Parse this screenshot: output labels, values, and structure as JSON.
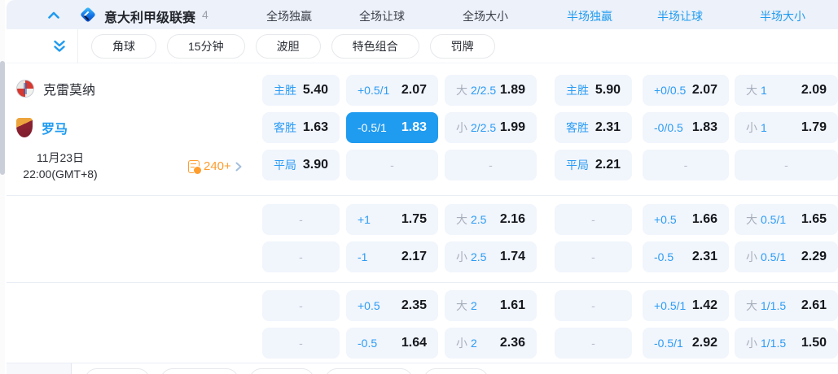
{
  "header": {
    "league": {
      "name": "意大利甲级联赛",
      "count": "4"
    },
    "tabs": [
      {
        "label": "全场独赢",
        "active": false
      },
      {
        "label": "全场让球",
        "active": false
      },
      {
        "label": "全场大小",
        "active": false
      },
      {
        "label": "半场独赢",
        "active": true
      },
      {
        "label": "半场让球",
        "active": true
      },
      {
        "label": "半场大小",
        "active": true
      }
    ]
  },
  "filter_pills": [
    "角球",
    "15分钟",
    "波胆",
    "特色组合",
    "罚牌"
  ],
  "match": {
    "home_team": "克雷莫纳",
    "away_team": "罗马",
    "date": "11月23日",
    "time": "22:00(GMT+8)",
    "more_markets": "240+"
  },
  "empty_placeholder": "-",
  "colors": {
    "accent_blue": "#1f9bf0",
    "label_blue": "#2b9cf5",
    "prefix_gray": "#a7afbc",
    "cell_bg": "#f1f5fc",
    "selected_bg": "#1f9bf0",
    "orange": "#ff9d2e",
    "header_bg": "#edf1f9"
  },
  "odds_rows": [
    {
      "cells": [
        {
          "label": "主胜",
          "value": "5.40"
        },
        {
          "label": "+0.5/1",
          "value": "2.07"
        },
        {
          "prefix": "大",
          "label": "2/2.5",
          "value": "1.89"
        },
        {
          "label": "主胜",
          "value": "5.90"
        },
        {
          "label": "+0/0.5",
          "value": "2.07"
        },
        {
          "prefix": "大",
          "label": "1",
          "value": "2.09"
        }
      ]
    },
    {
      "cells": [
        {
          "label": "客胜",
          "value": "1.63"
        },
        {
          "label": "-0.5/1",
          "value": "1.83",
          "selected": true
        },
        {
          "prefix": "小",
          "label": "2/2.5",
          "value": "1.99"
        },
        {
          "label": "客胜",
          "value": "2.31"
        },
        {
          "label": "-0/0.5",
          "value": "1.83"
        },
        {
          "prefix": "小",
          "label": "1",
          "value": "1.79"
        }
      ]
    },
    {
      "cells": [
        {
          "label": "平局",
          "value": "3.90"
        },
        {
          "empty": true
        },
        {
          "empty": true
        },
        {
          "label": "平局",
          "value": "2.21"
        },
        {
          "empty": true
        },
        {
          "empty": true
        }
      ]
    },
    {
      "cells": [
        {
          "empty": true
        },
        {
          "label": "+1",
          "value": "1.75"
        },
        {
          "prefix": "大",
          "label": "2.5",
          "value": "2.16"
        },
        {
          "empty": true
        },
        {
          "label": "+0.5",
          "value": "1.66"
        },
        {
          "prefix": "大",
          "label": "0.5/1",
          "value": "1.65"
        }
      ]
    },
    {
      "cells": [
        {
          "empty": true
        },
        {
          "label": "-1",
          "value": "2.17"
        },
        {
          "prefix": "小",
          "label": "2.5",
          "value": "1.74"
        },
        {
          "empty": true
        },
        {
          "label": "-0.5",
          "value": "2.31"
        },
        {
          "prefix": "小",
          "label": "0.5/1",
          "value": "2.29"
        }
      ]
    },
    {
      "cells": [
        {
          "empty": true
        },
        {
          "label": "+0.5",
          "value": "2.35"
        },
        {
          "prefix": "大",
          "label": "2",
          "value": "1.61"
        },
        {
          "empty": true
        },
        {
          "label": "+0.5/1",
          "value": "1.42"
        },
        {
          "prefix": "大",
          "label": "1/1.5",
          "value": "2.61"
        }
      ]
    },
    {
      "cells": [
        {
          "empty": true
        },
        {
          "label": "-0.5",
          "value": "1.64"
        },
        {
          "prefix": "小",
          "label": "2",
          "value": "2.36"
        },
        {
          "empty": true
        },
        {
          "label": "-0.5/1",
          "value": "2.92"
        },
        {
          "prefix": "小",
          "label": "1/1.5",
          "value": "1.50"
        }
      ]
    }
  ]
}
